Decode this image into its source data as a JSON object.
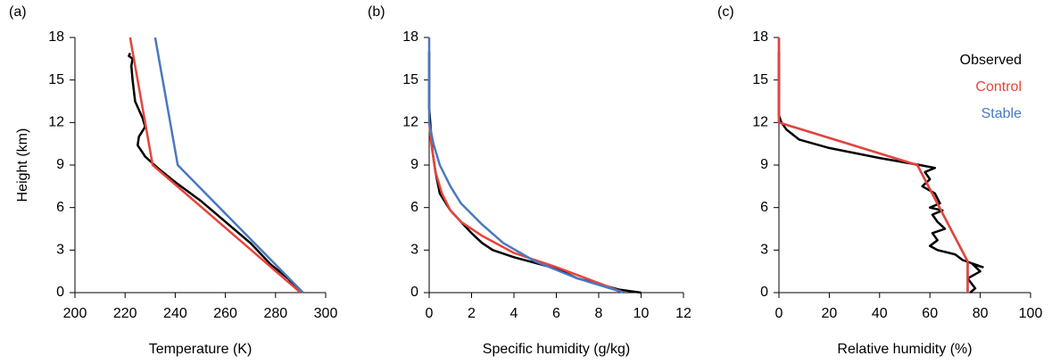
{
  "chart_data": [
    {
      "type": "line",
      "panel_label": "(a)",
      "xlabel": "Temperature (K)",
      "ylabel": "Height (km)",
      "xlim": [
        200,
        300
      ],
      "xticks": [
        200,
        220,
        240,
        260,
        280,
        300
      ],
      "ylim": [
        0,
        18
      ],
      "yticks": [
        0,
        3,
        6,
        9,
        12,
        15,
        18
      ],
      "series": [
        {
          "color": "#000000",
          "x": [
            290,
            285,
            278,
            270,
            260,
            250,
            240,
            233,
            228,
            225,
            225.5,
            228,
            227,
            224,
            223,
            222.5,
            223,
            221.5,
            222
          ],
          "values": [
            0,
            1,
            2,
            3.5,
            5,
            6.5,
            7.8,
            8.8,
            9.6,
            10.4,
            11,
            11.7,
            12.3,
            13.5,
            15,
            16,
            16.5,
            16.7,
            16.9
          ]
        },
        {
          "color": "#e8433a",
          "x": [
            290,
            231,
            222
          ],
          "values": [
            0,
            9,
            18
          ]
        },
        {
          "color": "#4a78c0",
          "x": [
            291,
            241,
            232
          ],
          "values": [
            0,
            9,
            18
          ]
        }
      ]
    },
    {
      "type": "line",
      "panel_label": "(b)",
      "xlabel": "Specific humidity (g/kg)",
      "xlim": [
        0,
        12
      ],
      "xticks": [
        0,
        2,
        4,
        6,
        8,
        10,
        12
      ],
      "ylim": [
        0,
        18
      ],
      "yticks": [
        0,
        3,
        6,
        9,
        12,
        15,
        18
      ],
      "series": [
        {
          "color": "#000000",
          "x": [
            10,
            9,
            7,
            6,
            4,
            3,
            2.5,
            2,
            1.5,
            1,
            0.5,
            0.3,
            0.15,
            0.05,
            0,
            0
          ],
          "values": [
            0,
            0.2,
            1,
            1.7,
            2.5,
            3,
            3.5,
            4.2,
            5,
            5.8,
            7,
            8.5,
            10,
            12,
            13,
            17
          ]
        },
        {
          "color": "#e8433a",
          "x": [
            9.2,
            6,
            4,
            2.5,
            1.5,
            1,
            0.6,
            0.3,
            0.1,
            0
          ],
          "values": [
            0,
            1.8,
            2.8,
            4,
            5,
            5.8,
            7,
            8.5,
            10.5,
            12
          ]
        },
        {
          "color": "#4a78c0",
          "x": [
            9.2,
            7,
            5,
            3.5,
            2.5,
            1.5,
            1,
            0.5,
            0.2,
            0,
            0
          ],
          "values": [
            0,
            1,
            2.2,
            3.5,
            4.8,
            6.3,
            7.5,
            9,
            10.5,
            12,
            18
          ]
        }
      ]
    },
    {
      "type": "line",
      "panel_label": "(c)",
      "xlabel": "Relative humidity (%)",
      "xlim": [
        0,
        100
      ],
      "xticks": [
        0,
        20,
        40,
        60,
        80,
        100
      ],
      "ylim": [
        0,
        18
      ],
      "yticks": [
        0,
        3,
        6,
        9,
        12,
        15,
        18
      ],
      "legend": "upper right",
      "series": [
        {
          "name": "Stable",
          "color": "#4a78c0",
          "x": [
            75,
            75,
            55,
            0,
            0
          ],
          "values": [
            0,
            2.2,
            9,
            12,
            18
          ],
          "legend_order": 2
        },
        {
          "name": "Observed",
          "color": "#000000",
          "x": [
            76,
            78,
            75,
            80,
            77,
            81,
            73,
            70,
            63,
            60,
            63,
            61,
            66,
            63,
            61,
            65,
            60,
            64,
            62,
            57,
            60,
            58,
            62,
            56,
            40,
            20,
            8,
            3,
            1,
            0,
            0
          ],
          "values": [
            0,
            0.3,
            1,
            1.5,
            2,
            1.8,
            2.3,
            2.7,
            3,
            3.3,
            3.7,
            4.2,
            4.5,
            5,
            5.5,
            5.8,
            6,
            6.3,
            7,
            7.5,
            8,
            8.5,
            8.8,
            9,
            9.5,
            10.2,
            10.8,
            11.5,
            12,
            12.5,
            17
          ],
          "legend_order": 0
        },
        {
          "name": "Control",
          "color": "#e8433a",
          "x": [
            75,
            75,
            55,
            0,
            0
          ],
          "values": [
            0,
            2.2,
            9,
            12,
            18
          ],
          "legend_order": 1
        }
      ]
    }
  ]
}
